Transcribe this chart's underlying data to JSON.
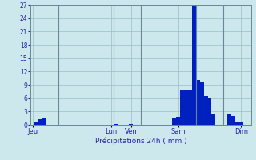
{
  "title": "Précipitations 24h ( mm )",
  "background_color": "#cce8ec",
  "grid_color": "#99bfc4",
  "bar_color_dark": "#0020c0",
  "bar_color_light": "#3399dd",
  "ylim": [
    0,
    27
  ],
  "yticks": [
    0,
    3,
    6,
    9,
    12,
    15,
    18,
    21,
    24,
    27
  ],
  "num_bars": 56,
  "day_labels": [
    "Jeu",
    "Lun",
    "Ven",
    "Sam",
    "Dim"
  ],
  "day_tick_positions": [
    0,
    20,
    25,
    37,
    53
  ],
  "vertical_line_positions": [
    7,
    21,
    28,
    42,
    49
  ],
  "bar_values": [
    0.0,
    0.5,
    1.2,
    1.5,
    0.0,
    0.0,
    0.0,
    0.0,
    0.0,
    0.0,
    0.0,
    0.0,
    0.0,
    0.0,
    0.0,
    0.0,
    0.0,
    0.0,
    0.0,
    0.0,
    0.0,
    0.2,
    0.0,
    0.0,
    0.0,
    0.2,
    0.0,
    0.0,
    0.0,
    0.0,
    0.0,
    0.0,
    0.0,
    0.0,
    0.0,
    0.0,
    1.5,
    1.8,
    7.8,
    8.0,
    8.0,
    27.0,
    10.0,
    9.5,
    6.5,
    6.0,
    2.5,
    0.0,
    0.0,
    0.0,
    2.5,
    2.0,
    0.5,
    0.6,
    0.0,
    0.0
  ],
  "bar_is_dark": [
    false,
    true,
    true,
    true,
    false,
    false,
    false,
    false,
    false,
    false,
    false,
    false,
    false,
    false,
    false,
    false,
    false,
    false,
    false,
    false,
    false,
    true,
    false,
    false,
    false,
    true,
    false,
    false,
    false,
    false,
    false,
    false,
    false,
    false,
    false,
    false,
    true,
    true,
    true,
    true,
    true,
    true,
    true,
    true,
    true,
    true,
    true,
    false,
    false,
    false,
    true,
    true,
    true,
    true,
    false,
    false
  ]
}
